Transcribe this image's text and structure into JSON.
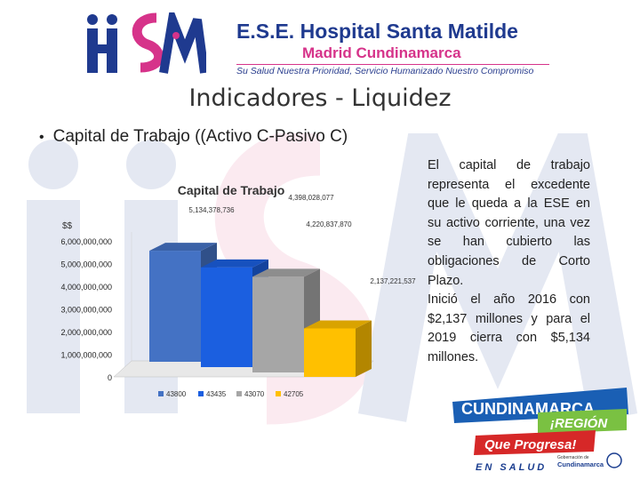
{
  "header": {
    "title": "E.S.E. Hospital Santa Matilde",
    "subtitle": "Madrid Cundinamarca",
    "slogan": "Su Salud Nuestra Prioridad, Servicio Humanizado Nuestro Compromiso",
    "logo_letters": "iiSM"
  },
  "slide": {
    "title": "Indicadores - Liquidez",
    "bullet": "Capital de Trabajo ((Activo C-Pasivo C)"
  },
  "description": {
    "paragraph1": "El capital de trabajo representa el excedente que le queda a la ESE en su activo corriente, una vez se han cubierto las obligaciones de Corto Plazo.",
    "paragraph2": "Inició el año 2016 con $2,137 millones y para el 2019 cierra con $5,134 millones."
  },
  "chart_data": {
    "type": "bar",
    "title": "Capital de Trabajo",
    "ylabel": "$$",
    "ylim": [
      0,
      6000000000
    ],
    "yticks": [
      "0",
      "1,000,000,000",
      "2,000,000,000",
      "3,000,000,000",
      "4,000,000,000",
      "5,000,000,000",
      "6,000,000,000"
    ],
    "ytick_values": [
      0,
      1000000000,
      2000000000,
      3000000000,
      4000000000,
      5000000000,
      6000000000
    ],
    "categories": [
      "43800",
      "43435",
      "43070",
      "42705"
    ],
    "values": [
      5134378736,
      4398028077,
      4220837870,
      2137221537
    ],
    "data_labels": [
      "5,134,378,736",
      "4,398,028,077",
      "4,220,837,870",
      "2,137,221,537"
    ],
    "colors": [
      "#4472c4",
      "#1b5fe0",
      "#a6a6a6",
      "#ffc000"
    ],
    "legend": [
      "43800",
      "43435",
      "43070",
      "42705"
    ],
    "legend_position": "bottom",
    "grid": false
  },
  "footer": {
    "brand": "CUNDINAMARCA",
    "region": "¡REGIÓN",
    "motto": "Que Progresa!",
    "health": "EN SALUD",
    "gov_small": "Gobernación de",
    "gov_name": "Cundinamarca"
  },
  "colors": {
    "brand_blue": "#1f3a8f",
    "brand_pink": "#d6338a",
    "watermark_blue": "#2b4c9c",
    "watermark_pink": "#e05a8e"
  }
}
